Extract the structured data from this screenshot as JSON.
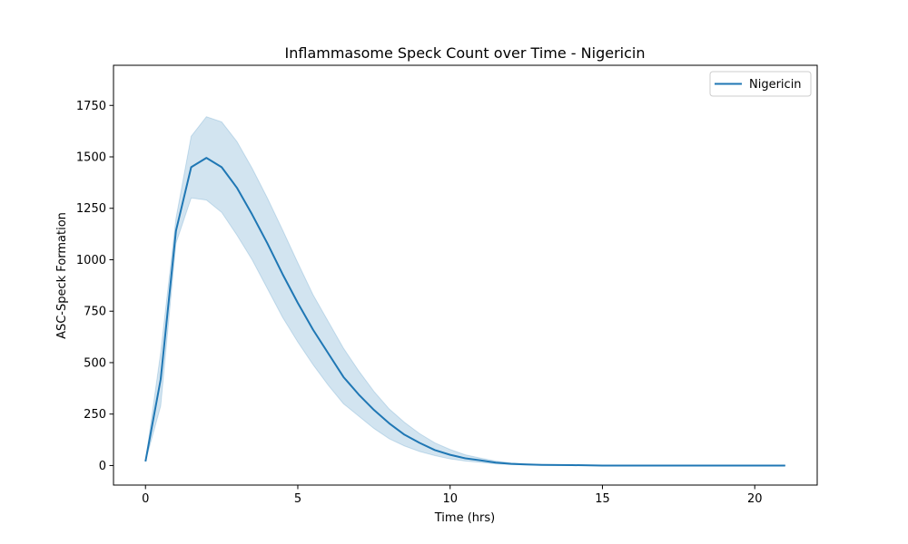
{
  "chart_data": {
    "type": "line",
    "title": "Inflammasome Speck Count over Time - Nigericin",
    "xlabel": "Time (hrs)",
    "ylabel": "ASC-Speck Formation",
    "xlim": [
      -1.05,
      22.05
    ],
    "ylim": [
      -95,
      1945
    ],
    "xticks": [
      0,
      5,
      10,
      15,
      20
    ],
    "yticks": [
      0,
      250,
      500,
      750,
      1000,
      1250,
      1500,
      1750
    ],
    "grid": false,
    "legend_position": "top-right",
    "colors": {
      "line": "#1f77b4",
      "band": "#1f77b4"
    },
    "series": [
      {
        "name": "Nigericin",
        "x": [
          0,
          0.5,
          1,
          1.5,
          2,
          2.5,
          3,
          3.5,
          4,
          4.5,
          5,
          5.5,
          6,
          6.5,
          7,
          7.5,
          8,
          8.5,
          9,
          9.5,
          10,
          10.5,
          11,
          11.5,
          12,
          12.5,
          13,
          14,
          15,
          16,
          17,
          18,
          19,
          20,
          21
        ],
        "y": [
          20,
          420,
          1140,
          1450,
          1495,
          1450,
          1350,
          1220,
          1080,
          930,
          790,
          660,
          545,
          430,
          345,
          270,
          205,
          150,
          110,
          75,
          52,
          35,
          25,
          14,
          8,
          5,
          3,
          2,
          0,
          0,
          0,
          0,
          0,
          0,
          0
        ],
        "lower": [
          20,
          290,
          1080,
          1300,
          1290,
          1230,
          1120,
          1000,
          860,
          720,
          600,
          490,
          390,
          300,
          240,
          180,
          130,
          95,
          68,
          48,
          32,
          22,
          15,
          8,
          5,
          3,
          2,
          1,
          0,
          0,
          0,
          0,
          0,
          0,
          0
        ],
        "upper": [
          20,
          550,
          1200,
          1600,
          1695,
          1670,
          1575,
          1445,
          1300,
          1145,
          985,
          830,
          700,
          570,
          460,
          360,
          275,
          210,
          155,
          110,
          78,
          52,
          36,
          22,
          13,
          8,
          5,
          3,
          1,
          1,
          1,
          1,
          1,
          1,
          1
        ]
      }
    ]
  }
}
